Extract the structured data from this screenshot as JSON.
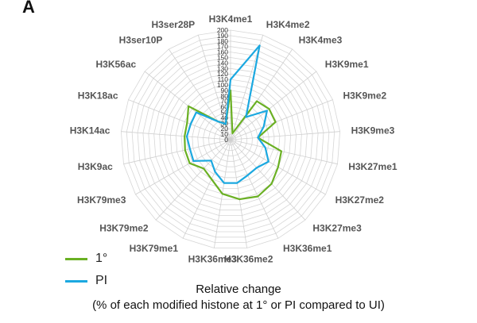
{
  "panel_label": "A",
  "legend": [
    {
      "label": "1°",
      "color": "#6AB023"
    },
    {
      "label": "PI",
      "color": "#1BA8E0"
    }
  ],
  "caption_line1": "Relative change",
  "caption_line2": "(% of each modified histone at 1° or PI compared to UI)",
  "chart_data": {
    "type": "radar",
    "categories": [
      "H3K4me1",
      "H3K4me2",
      "H3K4me3",
      "H3K9me1",
      "H3K9me2",
      "H3K9me3",
      "H3K27me1",
      "H3K27me2",
      "H3K27me3",
      "H3K36me1",
      "H3K36me2",
      "H3K36me3",
      "H3K79me1",
      "H3K79me2",
      "H3K79me3",
      "H3K9ac",
      "H3K14ac",
      "H3K18ac",
      "H3K56ac",
      "H3ser10P",
      "H3ser28P"
    ],
    "rlim": [
      0,
      200
    ],
    "ticks": [
      0,
      10,
      20,
      30,
      40,
      50,
      60,
      70,
      80,
      90,
      100,
      110,
      120,
      130,
      140,
      150,
      160,
      170,
      180,
      190,
      200
    ],
    "series": [
      {
        "name": "1°",
        "color": "#6AB023",
        "values": [
          90,
          12,
          85,
          90,
          88,
          50,
          95,
          100,
          110,
          115,
          110,
          100,
          80,
          72,
          86,
          85,
          84,
          85,
          98,
          40,
          30
        ]
      },
      {
        "name": "PI",
        "color": "#1BA8E0",
        "values": [
          110,
          180,
          50,
          85,
          65,
          50,
          65,
          80,
          70,
          72,
          80,
          80,
          65,
          52,
          78,
          76,
          80,
          78,
          80,
          40,
          30
        ]
      }
    ]
  }
}
